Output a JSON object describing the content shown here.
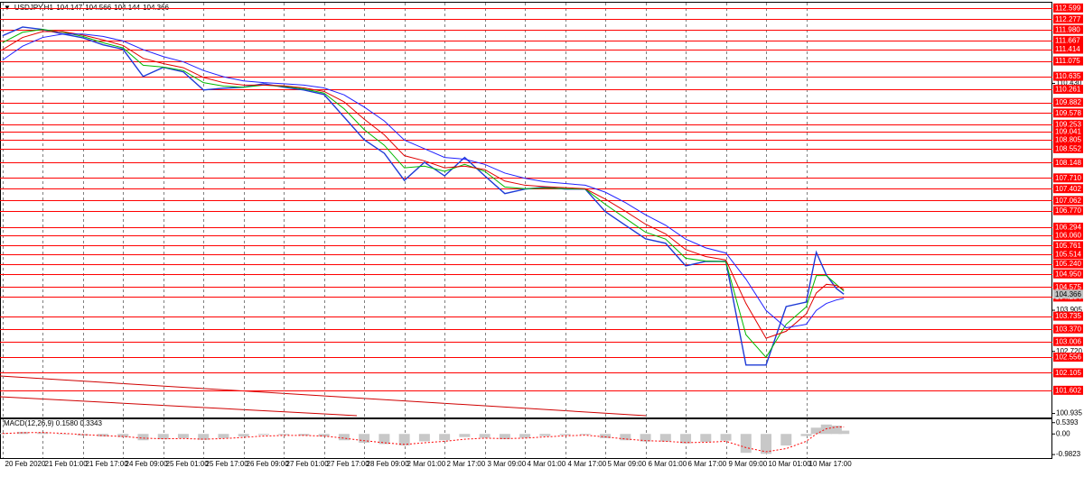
{
  "header": {
    "symbol": "USDJPY,H1",
    "ohlc": [
      104.147,
      104.566,
      104.144,
      104.366
    ]
  },
  "chart_data": [
    {
      "type": "line",
      "x": [
        0,
        8,
        16,
        24,
        32,
        40,
        48,
        56,
        64,
        72,
        80,
        88,
        96,
        104,
        112,
        120,
        128,
        136,
        144,
        152,
        160,
        168,
        176,
        184,
        192,
        200,
        208,
        216,
        224,
        232,
        240,
        248,
        256,
        264,
        272,
        280,
        288,
        296,
        304,
        312,
        320,
        324,
        328,
        332,
        335
      ],
      "series": [
        {
          "color": "#1f3bd6",
          "width": 1.4,
          "values": [
            111.8,
            112.05,
            111.98,
            111.85,
            111.74,
            111.54,
            111.41,
            110.63,
            110.89,
            110.76,
            110.24,
            110.29,
            110.32,
            110.42,
            110.32,
            110.24,
            110.11,
            109.46,
            108.81,
            108.42,
            107.64,
            108.16,
            107.77,
            108.3,
            107.77,
            107.26,
            107.39,
            107.44,
            107.39,
            107.39,
            106.74,
            106.35,
            105.96,
            105.83,
            105.18,
            105.31,
            105.31,
            102.33,
            102.33,
            104.01,
            104.14,
            105.57,
            104.92,
            104.53,
            104.366
          ]
        },
        {
          "color": "#00b800",
          "width": 1,
          "values": [
            111.6,
            111.9,
            111.98,
            111.9,
            111.78,
            111.6,
            111.45,
            110.95,
            110.9,
            110.8,
            110.45,
            110.35,
            110.32,
            110.38,
            110.34,
            110.27,
            110.15,
            109.7,
            109.1,
            108.65,
            108.0,
            108.05,
            107.9,
            108.1,
            107.9,
            107.45,
            107.4,
            107.42,
            107.4,
            107.39,
            106.95,
            106.55,
            106.15,
            105.95,
            105.4,
            105.32,
            105.3,
            103.2,
            102.55,
            103.5,
            104.0,
            104.9,
            104.9,
            104.65,
            104.45
          ]
        },
        {
          "color": "#e00000",
          "width": 1,
          "values": [
            111.4,
            111.75,
            111.92,
            111.92,
            111.82,
            111.68,
            111.52,
            111.15,
            111.0,
            110.88,
            110.6,
            110.45,
            110.38,
            110.38,
            110.36,
            110.3,
            110.2,
            109.9,
            109.4,
            108.95,
            108.35,
            108.2,
            108.0,
            108.05,
            107.95,
            107.62,
            107.5,
            107.46,
            107.43,
            107.4,
            107.1,
            106.75,
            106.38,
            106.1,
            105.65,
            105.45,
            105.35,
            104.1,
            103.1,
            103.3,
            103.8,
            104.4,
            104.65,
            104.62,
            104.5
          ]
        },
        {
          "color": "#2020ff",
          "width": 1,
          "values": [
            111.1,
            111.5,
            111.75,
            111.85,
            111.85,
            111.78,
            111.65,
            111.4,
            111.2,
            111.05,
            110.8,
            110.62,
            110.5,
            110.45,
            110.42,
            110.38,
            110.3,
            110.1,
            109.75,
            109.35,
            108.8,
            108.55,
            108.3,
            108.25,
            108.1,
            107.85,
            107.7,
            107.6,
            107.55,
            107.5,
            107.3,
            107.0,
            106.65,
            106.35,
            105.95,
            105.7,
            105.55,
            104.8,
            103.9,
            103.4,
            103.5,
            103.9,
            104.1,
            104.2,
            104.25
          ]
        }
      ],
      "xlim": [
        -1,
        418
      ],
      "ylim": [
        100.82,
        112.75
      ],
      "xticks": [
        {
          "value": 0,
          "label": "20 Feb 2020"
        },
        {
          "value": 16,
          "label": "21 Feb 01:00"
        },
        {
          "value": 32,
          "label": "21 Feb 17:00"
        },
        {
          "value": 48,
          "label": "24 Feb 09:00"
        },
        {
          "value": 64,
          "label": "25 Feb 01:00"
        },
        {
          "value": 80,
          "label": "25 Feb 17:00"
        },
        {
          "value": 96,
          "label": "26 Feb 09:00"
        },
        {
          "value": 112,
          "label": "27 Feb 01:00"
        },
        {
          "value": 128,
          "label": "27 Feb 17:00"
        },
        {
          "value": 144,
          "label": "28 Feb 09:00"
        },
        {
          "value": 160,
          "label": "2 Mar 01:00"
        },
        {
          "value": 176,
          "label": "2 Mar 17:00"
        },
        {
          "value": 192,
          "label": "3 Mar 09:00"
        },
        {
          "value": 208,
          "label": "4 Mar 01:00"
        },
        {
          "value": 224,
          "label": "4 Mar 17:00"
        },
        {
          "value": 240,
          "label": "5 Mar 09:00"
        },
        {
          "value": 256,
          "label": "6 Mar 01:00"
        },
        {
          "value": 272,
          "label": "6 Mar 17:00"
        },
        {
          "value": 288,
          "label": "9 Mar 09:00"
        },
        {
          "value": 304,
          "label": "10 Mar 01:00"
        },
        {
          "value": 320,
          "label": "10 Mar 17:00"
        }
      ],
      "yticks": [
        {
          "value": 110.43,
          "label": "110.430"
        },
        103.905,
        {
          "value": 102.72,
          "label": "102.720"
        },
        100.935
      ],
      "levels": [
        112.599,
        112.277,
        {
          "value": 111.98,
          "label": "111.980"
        },
        111.667,
        111.414,
        111.075,
        110.635,
        110.261,
        109.882,
        109.578,
        109.253,
        109.041,
        108.805,
        108.552,
        108.148,
        {
          "value": 107.71,
          "label": "107.710"
        },
        107.402,
        107.062,
        {
          "value": 106.77,
          "label": "106.770"
        },
        106.294,
        {
          "value": 106.06,
          "label": "106.060"
        },
        105.761,
        105.514,
        {
          "value": 105.24,
          "label": "105.240"
        },
        {
          "value": 104.95,
          "label": "104.950"
        },
        104.575,
        104.284,
        103.735,
        {
          "value": 103.37,
          "label": "103.370"
        },
        103.006,
        102.556,
        102.105,
        101.602
      ],
      "level_color": "#ff0000",
      "grid": true
    },
    {
      "type": "macd",
      "title": "MACD(12,26,9) 0.1580 0.3343",
      "x": [
        0,
        8,
        16,
        24,
        32,
        40,
        48,
        56,
        64,
        72,
        80,
        88,
        96,
        104,
        112,
        120,
        128,
        136,
        144,
        152,
        160,
        168,
        176,
        184,
        192,
        200,
        208,
        216,
        224,
        232,
        240,
        248,
        256,
        264,
        272,
        280,
        288,
        296,
        304,
        312,
        320,
        324,
        328,
        332,
        335
      ],
      "series": [
        {
          "kind": "histogram",
          "color": "#c8c8c8",
          "values": [
            0.05,
            0.1,
            0.08,
            -0.02,
            -0.08,
            -0.12,
            -0.15,
            -0.3,
            -0.25,
            -0.2,
            -0.28,
            -0.2,
            -0.12,
            -0.05,
            -0.05,
            -0.08,
            -0.12,
            -0.3,
            -0.42,
            -0.48,
            -0.55,
            -0.35,
            -0.3,
            -0.15,
            -0.18,
            -0.25,
            -0.18,
            -0.1,
            -0.06,
            -0.04,
            -0.2,
            -0.3,
            -0.36,
            -0.36,
            -0.45,
            -0.38,
            -0.32,
            -0.9,
            -0.95,
            -0.55,
            -0.1,
            0.3,
            0.45,
            0.4,
            0.158
          ]
        },
        {
          "kind": "signal",
          "color": "#ff0000",
          "values": [
            0.02,
            0.06,
            0.07,
            0.03,
            -0.03,
            -0.08,
            -0.12,
            -0.2,
            -0.23,
            -0.22,
            -0.25,
            -0.22,
            -0.16,
            -0.1,
            -0.07,
            -0.07,
            -0.1,
            -0.2,
            -0.32,
            -0.42,
            -0.5,
            -0.42,
            -0.35,
            -0.25,
            -0.2,
            -0.22,
            -0.2,
            -0.14,
            -0.09,
            -0.06,
            -0.14,
            -0.24,
            -0.32,
            -0.35,
            -0.41,
            -0.4,
            -0.35,
            -0.65,
            -0.85,
            -0.7,
            -0.35,
            0.0,
            0.25,
            0.33,
            0.3343
          ]
        }
      ],
      "xlim": [
        -1,
        418
      ],
      "ylim": [
        -1.15,
        0.7
      ],
      "yticks": [
        0.5393,
        {
          "value": 0,
          "label": "0.00"
        },
        -0.9823
      ],
      "grid": true
    }
  ]
}
